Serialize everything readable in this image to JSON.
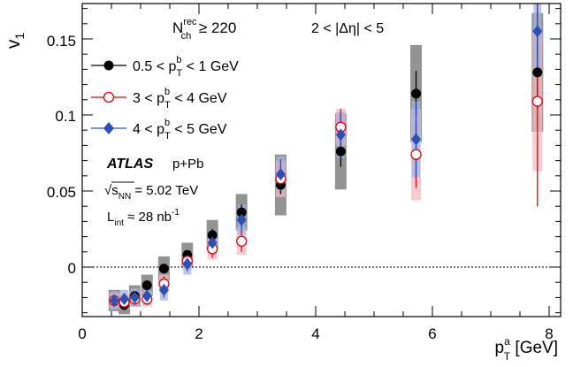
{
  "chart_data": {
    "type": "scatter",
    "xlabel": {
      "main": "p",
      "sup": "a",
      "sub": "T",
      "unit": " [GeV]"
    },
    "ylabel": {
      "main": "v",
      "sub": "1"
    },
    "xlim": [
      0,
      8.2
    ],
    "ylim": [
      -0.033,
      0.173
    ],
    "x_ticks": [
      {
        "value": 0,
        "label": "0"
      },
      {
        "value": 2,
        "label": "2"
      },
      {
        "value": 4,
        "label": "4"
      },
      {
        "value": 6,
        "label": "6"
      },
      {
        "value": 8,
        "label": "8"
      }
    ],
    "y_ticks": [
      {
        "value": 0,
        "label": "0"
      },
      {
        "value": 0.05,
        "label": "0.05"
      },
      {
        "value": 0.1,
        "label": "0.1"
      },
      {
        "value": 0.15,
        "label": "0.15"
      }
    ],
    "zero_line": true,
    "selection": {
      "nch": {
        "main": "N",
        "sup": "rec",
        "sub": "ch",
        "rel": " ≥ 220"
      },
      "deta": "2 < |Δη| < 5"
    },
    "legend_position": "top-left",
    "series": [
      {
        "label": {
          "pre": "0.5 < p",
          "sup": "b",
          "sub": "T",
          "post": " < 1 GeV"
        },
        "marker": "circle-filled",
        "color": "#000000",
        "sys_color": "#808080",
        "points": [
          {
            "x": 0.55,
            "y": -0.022,
            "stat": 0.004,
            "sys": 0.007
          },
          {
            "x": 0.72,
            "y": -0.025,
            "stat": 0.003,
            "sys": 0.006
          },
          {
            "x": 0.9,
            "y": -0.019,
            "stat": 0.003,
            "sys": 0.007
          },
          {
            "x": 1.11,
            "y": -0.012,
            "stat": 0.003,
            "sys": 0.007
          },
          {
            "x": 1.4,
            "y": -0.001,
            "stat": 0.003,
            "sys": 0.008
          },
          {
            "x": 1.8,
            "y": 0.008,
            "stat": 0.003,
            "sys": 0.008
          },
          {
            "x": 2.23,
            "y": 0.021,
            "stat": 0.004,
            "sys": 0.01
          },
          {
            "x": 2.73,
            "y": 0.036,
            "stat": 0.005,
            "sys": 0.012
          },
          {
            "x": 3.4,
            "y": 0.054,
            "stat": 0.006,
            "sys": 0.02
          },
          {
            "x": 4.43,
            "y": 0.076,
            "stat": 0.01,
            "sys": 0.025
          },
          {
            "x": 5.72,
            "y": 0.114,
            "stat": 0.015,
            "sys": 0.032
          },
          {
            "x": 7.8,
            "y": 0.128,
            "stat": 0.024,
            "sys": 0.039
          }
        ]
      },
      {
        "label": {
          "pre": "3 < p",
          "sup": "b",
          "sub": "T",
          "post": " < 4 GeV"
        },
        "marker": "circle-open",
        "color": "#e8000b",
        "sys_color": "#f7b8c0",
        "points": [
          {
            "x": 0.55,
            "y": -0.022,
            "stat": 0.004,
            "sys": 0.005
          },
          {
            "x": 0.72,
            "y": -0.023,
            "stat": 0.004,
            "sys": 0.005
          },
          {
            "x": 0.9,
            "y": -0.021,
            "stat": 0.004,
            "sys": 0.005
          },
          {
            "x": 1.11,
            "y": -0.021,
            "stat": 0.004,
            "sys": 0.005
          },
          {
            "x": 1.4,
            "y": -0.011,
            "stat": 0.005,
            "sys": 0.006
          },
          {
            "x": 1.8,
            "y": 0.004,
            "stat": 0.005,
            "sys": 0.006
          },
          {
            "x": 2.23,
            "y": 0.012,
            "stat": 0.006,
            "sys": 0.007
          },
          {
            "x": 2.73,
            "y": 0.017,
            "stat": 0.007,
            "sys": 0.009
          },
          {
            "x": 3.4,
            "y": 0.058,
            "stat": 0.008,
            "sys": 0.012
          },
          {
            "x": 4.43,
            "y": 0.092,
            "stat": 0.012,
            "sys": 0.012
          },
          {
            "x": 5.72,
            "y": 0.074,
            "stat": 0.022,
            "sys": 0.03
          },
          {
            "x": 7.8,
            "y": 0.109,
            "stat": 0.069,
            "sys": 0.046
          }
        ]
      },
      {
        "label": {
          "pre": "4 < p",
          "sup": "b",
          "sub": "T",
          "post": " < 5 GeV"
        },
        "marker": "diamond-filled",
        "color": "#2c4fb8",
        "sys_color": "#a6b4e0",
        "points": [
          {
            "x": 0.55,
            "y": -0.022,
            "stat": 0.004,
            "sys": 0.006
          },
          {
            "x": 0.72,
            "y": -0.021,
            "stat": 0.004,
            "sys": 0.006
          },
          {
            "x": 0.9,
            "y": -0.02,
            "stat": 0.004,
            "sys": 0.006
          },
          {
            "x": 1.11,
            "y": -0.019,
            "stat": 0.004,
            "sys": 0.006
          },
          {
            "x": 1.4,
            "y": -0.015,
            "stat": 0.005,
            "sys": 0.007
          },
          {
            "x": 1.8,
            "y": 0.002,
            "stat": 0.005,
            "sys": 0.007
          },
          {
            "x": 2.23,
            "y": 0.016,
            "stat": 0.006,
            "sys": 0.008
          },
          {
            "x": 2.73,
            "y": 0.031,
            "stat": 0.008,
            "sys": 0.01
          },
          {
            "x": 3.4,
            "y": 0.061,
            "stat": 0.01,
            "sys": 0.012
          },
          {
            "x": 4.43,
            "y": 0.087,
            "stat": 0.015,
            "sys": 0.015
          },
          {
            "x": 5.72,
            "y": 0.084,
            "stat": 0.025,
            "sys": 0.025
          },
          {
            "x": 7.8,
            "y": 0.155,
            "stat": 0.03,
            "sys": 0.03
          }
        ]
      }
    ]
  },
  "annotations": {
    "experiment": "ATLAS",
    "system": "p+Pb",
    "energy": {
      "sqrt": "√",
      "s": "s",
      "sub": "NN",
      "value": " = 5.02 TeV"
    },
    "lumi": {
      "main": "L",
      "sub": "int",
      "value": " ≈ 28 nb",
      "sup": "-1"
    }
  }
}
